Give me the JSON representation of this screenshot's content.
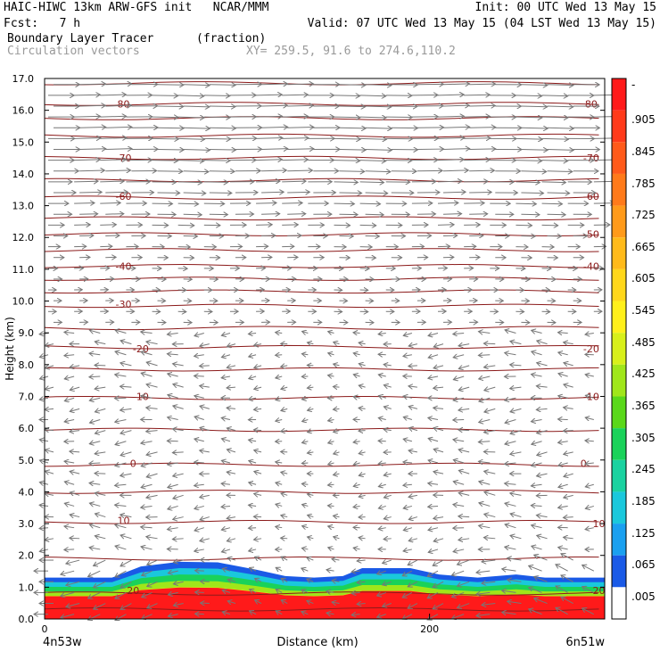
{
  "header": {
    "line1_left": "HAIC-HIWC 13km ARW-GFS init   NCAR/MMM",
    "line1_right": "Init: 00 UTC Wed 13 May 15",
    "line2_left": "Fcst:   7 h",
    "line2_right": "Valid: 07 UTC Wed 13 May 15 (04 LST Wed 13 May 15)",
    "field_name": "Boundary Layer Tracer",
    "field_units": "(fraction)",
    "overlay_name": "Circulation vectors",
    "cross_section": "XY= 259.5, 91.6 to 274.6,110.2"
  },
  "chart_data": {
    "type": "heatmap",
    "xlabel": "Distance (km)",
    "ylabel": "Height (km)",
    "xlim": [
      0,
      291
    ],
    "ylim": [
      0,
      17
    ],
    "x_ticks": [
      {
        "value": 0,
        "label": "0"
      },
      {
        "value": 200,
        "label": "200"
      }
    ],
    "x_end_labels": {
      "left": "4n53w",
      "right": "6n51w"
    },
    "y_ticks": [
      "0.0",
      "1.0",
      "2.0",
      "3.0",
      "4.0",
      "5.0",
      "6.0",
      "7.0",
      "8.0",
      "9.0",
      "10.0",
      "11.0",
      "12.0",
      "13.0",
      "14.0",
      "15.0",
      "16.0",
      "17.0"
    ],
    "colorbar": {
      "labels": [
        "-",
        ".905",
        ".845",
        ".785",
        ".725",
        ".665",
        ".605",
        ".545",
        ".485",
        ".425",
        ".365",
        ".305",
        ".245",
        ".185",
        ".125",
        ".065",
        ".005"
      ],
      "colors": [
        "#ff1a1a",
        "#ff3a1a",
        "#ff5a1a",
        "#ff7a1a",
        "#ff9a1a",
        "#ffba1a",
        "#ffd71a",
        "#fff01a",
        "#d8f01a",
        "#a0e61a",
        "#5ad81a",
        "#1ad25a",
        "#1ad2a0",
        "#1ac8dc",
        "#1aa0f0",
        "#1a5ae6",
        "#ffffff"
      ]
    },
    "temperature_contours": {
      "color": "#8b1a1a",
      "labels": [
        {
          "text": "80",
          "x": 41,
          "y": 16.2
        },
        {
          "text": "80",
          "x": 284,
          "y": 16.2
        },
        {
          "text": "-70",
          "x": 41,
          "y": 14.5
        },
        {
          "text": "-70",
          "x": 284,
          "y": 14.5
        },
        {
          "text": "-60",
          "x": 41,
          "y": 13.3
        },
        {
          "text": "-60",
          "x": 284,
          "y": 13.3
        },
        {
          "text": "-50",
          "x": 284,
          "y": 12.1
        },
        {
          "text": "-40",
          "x": 41,
          "y": 11.1
        },
        {
          "text": "-40",
          "x": 284,
          "y": 11.1
        },
        {
          "text": "-30",
          "x": 41,
          "y": 9.9
        },
        {
          "text": "-20",
          "x": 50,
          "y": 8.5
        },
        {
          "text": "-20",
          "x": 284,
          "y": 8.5
        },
        {
          "text": "-10",
          "x": 50,
          "y": 7.0
        },
        {
          "text": "-10",
          "x": 284,
          "y": 7.0
        },
        {
          "text": "0",
          "x": 46,
          "y": 4.9
        },
        {
          "text": "0",
          "x": 280,
          "y": 4.9
        },
        {
          "text": "10",
          "x": 41,
          "y": 3.1
        },
        {
          "text": "10",
          "x": 288,
          "y": 3.0
        },
        {
          "text": "20",
          "x": 46,
          "y": 0.9
        },
        {
          "text": "20",
          "x": 288,
          "y": 0.9
        }
      ]
    },
    "tracer_top_km": [
      {
        "x": 0,
        "y": 1.3
      },
      {
        "x": 20,
        "y": 1.3
      },
      {
        "x": 35,
        "y": 1.3
      },
      {
        "x": 50,
        "y": 1.65
      },
      {
        "x": 70,
        "y": 1.8
      },
      {
        "x": 90,
        "y": 1.78
      },
      {
        "x": 110,
        "y": 1.55
      },
      {
        "x": 125,
        "y": 1.35
      },
      {
        "x": 140,
        "y": 1.3
      },
      {
        "x": 155,
        "y": 1.35
      },
      {
        "x": 165,
        "y": 1.6
      },
      {
        "x": 190,
        "y": 1.6
      },
      {
        "x": 205,
        "y": 1.4
      },
      {
        "x": 225,
        "y": 1.3
      },
      {
        "x": 245,
        "y": 1.4
      },
      {
        "x": 260,
        "y": 1.3
      },
      {
        "x": 291,
        "y": 1.3
      }
    ]
  }
}
